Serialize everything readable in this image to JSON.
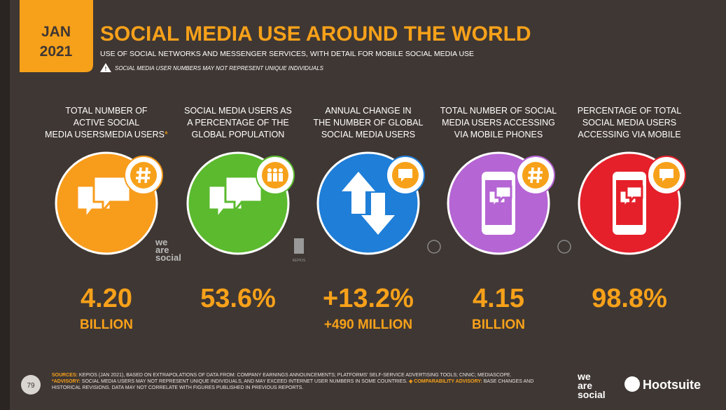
{
  "header": {
    "badge": {
      "month": "JAN",
      "year": "2021"
    },
    "title": "SOCIAL MEDIA USE AROUND THE WORLD",
    "subtitle": "USE OF SOCIAL NETWORKS AND MESSENGER SERVICES, WITH DETAIL FOR MOBILE SOCIAL MEDIA USE",
    "warning": "SOCIAL MEDIA USER NUMBERS MAY NOT REPRESENT UNIQUE INDIVIDUALS"
  },
  "stats": [
    {
      "label": [
        "TOTAL NUMBER OF",
        "ACTIVE SOCIAL",
        "MEDIA USERS"
      ],
      "asterisk": "*",
      "value": "4.20",
      "unit": "BILLION"
    },
    {
      "label": [
        "SOCIAL MEDIA USERS AS",
        "A PERCENTAGE OF THE",
        "GLOBAL POPULATION"
      ],
      "value": "53.6%"
    },
    {
      "label": [
        "ANNUAL CHANGE IN",
        "THE NUMBER OF GLOBAL",
        "SOCIAL MEDIA USERS"
      ],
      "value": "+13.2%",
      "unit": "+490 MILLION"
    },
    {
      "label": [
        "TOTAL NUMBER OF SOCIAL",
        "MEDIA USERS ACCESSING",
        "VIA MOBILE PHONES"
      ],
      "value": "4.15",
      "unit": "BILLION"
    },
    {
      "label": [
        "PERCENTAGE OF TOTAL",
        "SOCIAL MEDIA USERS",
        "ACCESSING VIA MOBILE"
      ],
      "value": "98.8%"
    }
  ],
  "watermarks": {
    "we_are_social": [
      "we",
      "are",
      "social"
    ],
    "kepios": "KEPIOS"
  },
  "footer": {
    "page": "79",
    "sources_label": "SOURCES:",
    "sources": "KEPIOS (JAN 2021), BASED ON EXTRAPOLATIONS OF DATA FROM: COMPANY EARNINGS ANNOUNCEMENTS; PLATFORMS' SELF-SERVICE ADVERTISING TOOLS; CNNIC; MEDIASCOPE.",
    "advisory_label": "*ADVISORY:",
    "advisory": "SOCIAL MEDIA USERS MAY NOT REPRESENT UNIQUE INDIVIDUALS, AND MAY EXCEED INTERNET USER NUMBERS IN SOME COUNTRIES.",
    "comparability_label": "◈ COMPARABILITY ADVISORY:",
    "comparability": "BASE CHANGES AND HISTORICAL REVISIONS. DATA MAY NOT CORRELATE WITH FIGURES PUBLISHED IN PREVIOUS REPORTS."
  },
  "logos": {
    "we_are_social": [
      "we",
      "are",
      "social"
    ],
    "hootsuite": "Hootsuite"
  }
}
